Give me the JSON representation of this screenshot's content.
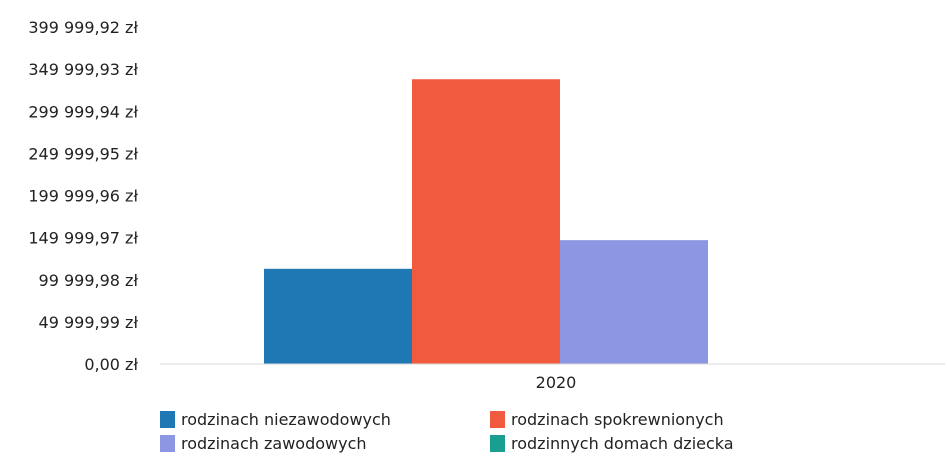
{
  "chart_data": {
    "type": "bar",
    "categories": [
      "2020"
    ],
    "series": [
      {
        "name": "rodzinach niezawodowych",
        "color": "#1f78b4",
        "values": [
          113000
        ]
      },
      {
        "name": "rodzinach spokrewnionych",
        "color": "#f25a3f",
        "values": [
          338000
        ]
      },
      {
        "name": "rodzinach zawodowych",
        "color": "#8d96e3",
        "values": [
          147000
        ]
      },
      {
        "name": "rodzinnych domach dziecka",
        "color": "#1a9e8f",
        "values": [
          0
        ]
      }
    ],
    "yticks": [
      {
        "value": 0,
        "label": "0,00 zł"
      },
      {
        "value": 49999.99,
        "label": "49 999,99 zł"
      },
      {
        "value": 99999.98,
        "label": "99 999,98 zł"
      },
      {
        "value": 149999.97,
        "label": "149 999,97 zł"
      },
      {
        "value": 199999.96,
        "label": "199 999,96 zł"
      },
      {
        "value": 249999.95,
        "label": "249 999,95 zł"
      },
      {
        "value": 299999.94,
        "label": "299 999,94 zł"
      },
      {
        "value": 349999.93,
        "label": "349 999,93 zł"
      },
      {
        "value": 399999.92,
        "label": "399 999,92 zł"
      }
    ],
    "ylim": [
      0,
      399999.92
    ],
    "title": "",
    "xlabel": "",
    "ylabel": "",
    "grid": false,
    "legend_position": "bottom"
  }
}
